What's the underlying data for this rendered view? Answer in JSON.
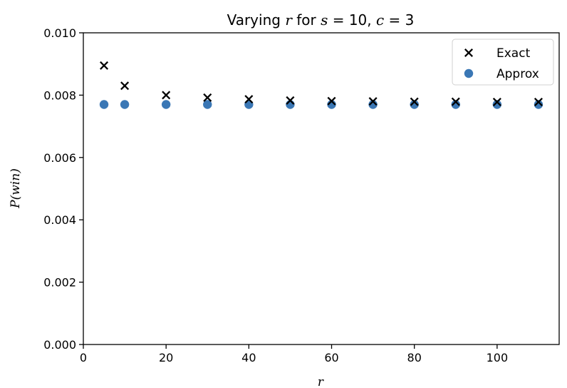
{
  "chart_data": {
    "type": "scatter",
    "title": "Varying r for s = 10,  c = 3",
    "title_parts": {
      "prefix": "Varying ",
      "r": "r",
      "mid1": " for ",
      "s": "s",
      "mid2": " = 10,  ",
      "c": "c",
      "mid3": " = 3"
    },
    "xlabel": "r",
    "ylabel": "P(win)",
    "xlim": [
      0,
      115
    ],
    "ylim": [
      0,
      0.01
    ],
    "xticks": [
      0,
      20,
      40,
      60,
      80,
      100
    ],
    "xtick_labels": [
      "0",
      "20",
      "40",
      "60",
      "80",
      "100"
    ],
    "yticks": [
      0,
      0.002,
      0.004,
      0.006,
      0.008,
      0.01
    ],
    "ytick_labels": [
      "0.000",
      "0.002",
      "0.004",
      "0.006",
      "0.008",
      "0.010"
    ],
    "legend_position": "top-right",
    "grid": false,
    "series": [
      {
        "name": "Exact",
        "marker": "x",
        "color": "#000000",
        "x": [
          5,
          10,
          20,
          30,
          40,
          50,
          60,
          70,
          80,
          90,
          100,
          110
        ],
        "y": [
          0.00895,
          0.0083,
          0.008,
          0.00792,
          0.00787,
          0.00783,
          0.00781,
          0.0078,
          0.00779,
          0.00779,
          0.00778,
          0.00778
        ]
      },
      {
        "name": "Approx",
        "marker": "o",
        "color": "#3a77b5",
        "x": [
          5,
          10,
          20,
          30,
          40,
          50,
          60,
          70,
          80,
          90,
          100,
          110
        ],
        "y": [
          0.0077,
          0.0077,
          0.0077,
          0.0077,
          0.0077,
          0.0077,
          0.0077,
          0.0077,
          0.0077,
          0.0077,
          0.0077,
          0.0077
        ]
      }
    ]
  }
}
